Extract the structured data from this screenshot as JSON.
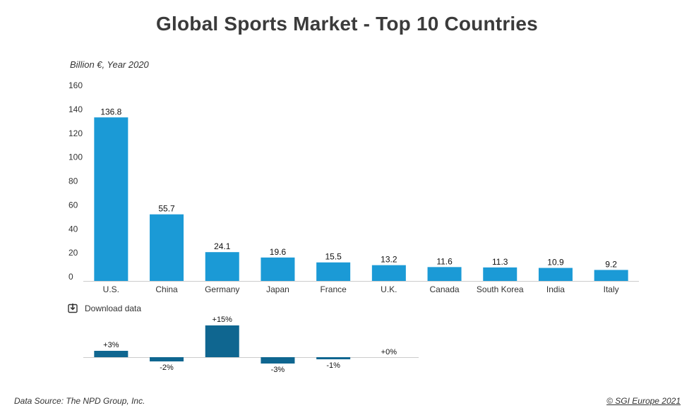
{
  "page": {
    "title": "Global Sports Market - Top 10 Countries",
    "subtitle": "Billion €, Year 2020",
    "download_label": "Download data",
    "source": "Data Source: The NPD Group, Inc.",
    "copyright": "© SGI Europe 2021"
  },
  "colors": {
    "bar": "#1b9ad6",
    "change_bar": "#0f6690",
    "axis": "#cccccc"
  },
  "chart_data": [
    {
      "type": "bar",
      "categories": [
        "U.S.",
        "China",
        "Germany",
        "Japan",
        "France",
        "U.K.",
        "Canada",
        "South Korea",
        "India",
        "Italy"
      ],
      "values": [
        136.8,
        55.7,
        24.1,
        19.6,
        15.5,
        13.2,
        11.6,
        11.3,
        10.9,
        9.2
      ],
      "data_labels": [
        "136.8",
        "55.7",
        "24.1",
        "19.6",
        "15.5",
        "13.2",
        "11.6",
        "11.3",
        "10.9",
        "9.2"
      ],
      "title": "Global Sports Market - Top 10 Countries",
      "ylabel": "Billion €, Year 2020",
      "ylim": [
        0,
        160
      ],
      "yticks": [
        0,
        20,
        40,
        60,
        80,
        100,
        120,
        140,
        160
      ],
      "grid": false
    },
    {
      "type": "bar",
      "values": [
        3,
        -2,
        15,
        -3,
        -1,
        0
      ],
      "data_labels": [
        "+3%",
        "-2%",
        "+15%",
        "-3%",
        "-1%",
        "+0%"
      ],
      "grid": false
    }
  ]
}
